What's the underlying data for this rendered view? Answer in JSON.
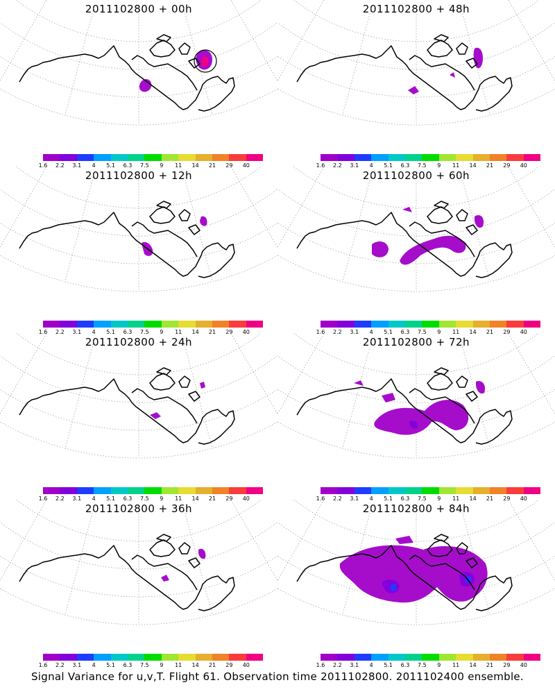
{
  "colorbar": {
    "colors": [
      "#a000c8",
      "#8200dc",
      "#1e3cff",
      "#00a0ff",
      "#00c8c8",
      "#00d28c",
      "#00dc00",
      "#a0e632",
      "#e6dc32",
      "#e6af2d",
      "#f08228",
      "#fa3c3c",
      "#f00082"
    ],
    "labels": [
      "1.6",
      "2.2",
      "3.1",
      "4",
      "5.1",
      "6.3",
      "7.5",
      "9",
      "11",
      "14",
      "21",
      "29",
      "40"
    ]
  },
  "panels": [
    {
      "title": "2011102800 + 00h"
    },
    {
      "title": "2011102800 + 48h"
    },
    {
      "title": "2011102800 + 12h"
    },
    {
      "title": "2011102800 + 60h"
    },
    {
      "title": "2011102800 + 24h"
    },
    {
      "title": "2011102800 + 72h"
    },
    {
      "title": "2011102800 + 36h"
    },
    {
      "title": "2011102800 + 84h"
    }
  ],
  "caption": "Signal Variance for u,v,T. Flight 61. Observation time 2011102800. 2011102400 ensemble."
}
